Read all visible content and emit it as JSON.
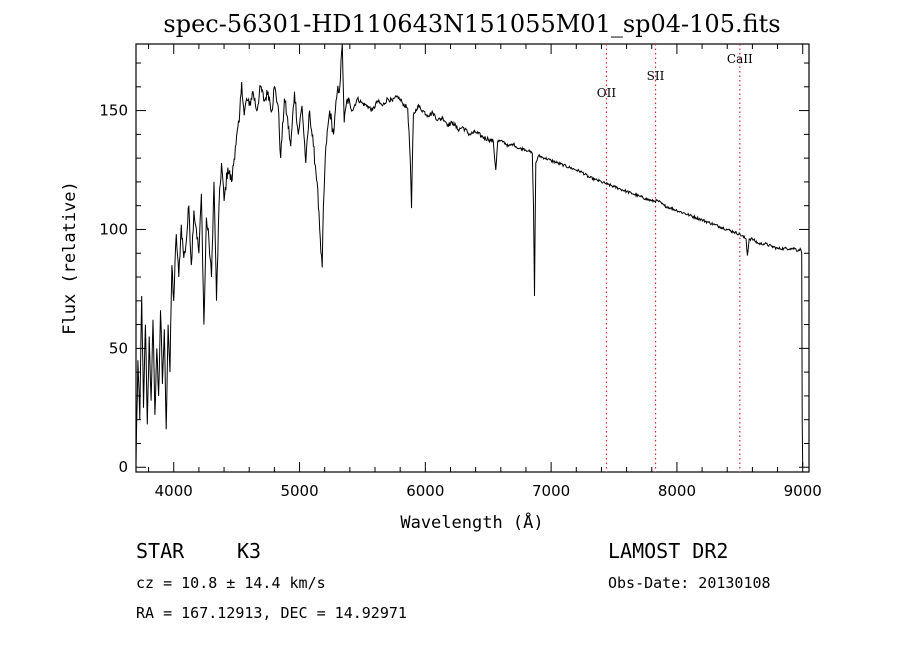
{
  "chart_data": {
    "type": "line",
    "title": "spec-56301-HD110643N151055M01_sp04-105.fits",
    "xlabel": "Wavelength (Å)",
    "ylabel": "Flux (relative)",
    "xlim": [
      3700,
      9050
    ],
    "ylim": [
      -2,
      178
    ],
    "x_ticks": [
      4000,
      5000,
      6000,
      7000,
      8000,
      9000
    ],
    "y_ticks": [
      0,
      50,
      100,
      150
    ],
    "series": [
      {
        "points": [
          [
            3700,
            2
          ],
          [
            3715,
            45
          ],
          [
            3730,
            20
          ],
          [
            3745,
            72
          ],
          [
            3760,
            25
          ],
          [
            3775,
            60
          ],
          [
            3790,
            18
          ],
          [
            3805,
            55
          ],
          [
            3820,
            28
          ],
          [
            3835,
            62
          ],
          [
            3850,
            22
          ],
          [
            3865,
            50
          ],
          [
            3880,
            30
          ],
          [
            3895,
            66
          ],
          [
            3910,
            35
          ],
          [
            3925,
            58
          ],
          [
            3940,
            16
          ],
          [
            3955,
            60
          ],
          [
            3970,
            40
          ],
          [
            3985,
            85
          ],
          [
            4000,
            70
          ],
          [
            4020,
            98
          ],
          [
            4040,
            80
          ],
          [
            4060,
            102
          ],
          [
            4080,
            88
          ],
          [
            4100,
            95
          ],
          [
            4120,
            110
          ],
          [
            4140,
            85
          ],
          [
            4160,
            108
          ],
          [
            4180,
            100
          ],
          [
            4200,
            90
          ],
          [
            4220,
            115
          ],
          [
            4240,
            60
          ],
          [
            4260,
            105
          ],
          [
            4280,
            95
          ],
          [
            4300,
            80
          ],
          [
            4320,
            120
          ],
          [
            4340,
            70
          ],
          [
            4360,
            110
          ],
          [
            4380,
            128
          ],
          [
            4400,
            112
          ],
          [
            4430,
            126
          ],
          [
            4460,
            120
          ],
          [
            4490,
            135
          ],
          [
            4520,
            145
          ],
          [
            4540,
            162
          ],
          [
            4560,
            148
          ],
          [
            4580,
            155
          ],
          [
            4600,
            152
          ],
          [
            4630,
            158
          ],
          [
            4660,
            150
          ],
          [
            4690,
            160
          ],
          [
            4720,
            154
          ],
          [
            4750,
            158
          ],
          [
            4780,
            150
          ],
          [
            4800,
            160
          ],
          [
            4830,
            152
          ],
          [
            4850,
            130
          ],
          [
            4880,
            155
          ],
          [
            4900,
            148
          ],
          [
            4930,
            135
          ],
          [
            4960,
            158
          ],
          [
            4990,
            140
          ],
          [
            5020,
            152
          ],
          [
            5050,
            128
          ],
          [
            5080,
            150
          ],
          [
            5110,
            135
          ],
          [
            5140,
            120
          ],
          [
            5160,
            100
          ],
          [
            5170,
            90
          ],
          [
            5180,
            84
          ],
          [
            5190,
            110
          ],
          [
            5210,
            135
          ],
          [
            5240,
            150
          ],
          [
            5270,
            140
          ],
          [
            5300,
            158
          ],
          [
            5320,
            160
          ],
          [
            5340,
            178
          ],
          [
            5355,
            145
          ],
          [
            5380,
            155
          ],
          [
            5420,
            150
          ],
          [
            5460,
            155
          ],
          [
            5500,
            153
          ],
          [
            5540,
            152
          ],
          [
            5580,
            150
          ],
          [
            5620,
            154
          ],
          [
            5660,
            152
          ],
          [
            5700,
            155
          ],
          [
            5740,
            154
          ],
          [
            5780,
            156
          ],
          [
            5820,
            153
          ],
          [
            5860,
            151
          ],
          [
            5880,
            130
          ],
          [
            5890,
            109
          ],
          [
            5905,
            148
          ],
          [
            5940,
            152
          ],
          [
            5980,
            150
          ],
          [
            6020,
            148
          ],
          [
            6060,
            149
          ],
          [
            6100,
            146
          ],
          [
            6140,
            147
          ],
          [
            6180,
            144
          ],
          [
            6220,
            145
          ],
          [
            6260,
            142
          ],
          [
            6300,
            143
          ],
          [
            6350,
            140
          ],
          [
            6400,
            141
          ],
          [
            6450,
            139
          ],
          [
            6500,
            138
          ],
          [
            6540,
            137
          ],
          [
            6560,
            125
          ],
          [
            6575,
            137
          ],
          [
            6620,
            137
          ],
          [
            6660,
            135
          ],
          [
            6700,
            136
          ],
          [
            6740,
            134
          ],
          [
            6780,
            134
          ],
          [
            6820,
            133
          ],
          [
            6850,
            132
          ],
          [
            6860,
            110
          ],
          [
            6868,
            72
          ],
          [
            6878,
            128
          ],
          [
            6900,
            131
          ],
          [
            6950,
            130
          ],
          [
            7000,
            129
          ],
          [
            7050,
            128
          ],
          [
            7100,
            127
          ],
          [
            7150,
            126
          ],
          [
            7200,
            125
          ],
          [
            7250,
            124
          ],
          [
            7300,
            122
          ],
          [
            7350,
            121
          ],
          [
            7400,
            120
          ],
          [
            7450,
            119
          ],
          [
            7500,
            118
          ],
          [
            7550,
            117
          ],
          [
            7600,
            116
          ],
          [
            7650,
            115
          ],
          [
            7700,
            114
          ],
          [
            7750,
            113
          ],
          [
            7800,
            112
          ],
          [
            7850,
            112
          ],
          [
            7900,
            110
          ],
          [
            7950,
            109
          ],
          [
            8000,
            108
          ],
          [
            8050,
            107
          ],
          [
            8100,
            106
          ],
          [
            8150,
            105
          ],
          [
            8200,
            104
          ],
          [
            8250,
            103
          ],
          [
            8300,
            102
          ],
          [
            8350,
            101
          ],
          [
            8400,
            100
          ],
          [
            8450,
            99
          ],
          [
            8500,
            98
          ],
          [
            8550,
            96
          ],
          [
            8560,
            89
          ],
          [
            8575,
            96
          ],
          [
            8600,
            96
          ],
          [
            8650,
            94
          ],
          [
            8700,
            94
          ],
          [
            8750,
            93
          ],
          [
            8800,
            92
          ],
          [
            8850,
            92
          ],
          [
            8900,
            92
          ],
          [
            8940,
            92
          ],
          [
            8960,
            91
          ],
          [
            8980,
            92
          ],
          [
            8992,
            90
          ],
          [
            8996,
            20
          ],
          [
            9000,
            0
          ]
        ]
      }
    ],
    "lines": [
      {
        "label": "OII",
        "x": 7440,
        "color": "#e8202a"
      },
      {
        "label": "SII",
        "x": 7830,
        "color": "#e8202a"
      },
      {
        "label": "CaII",
        "x": 8500,
        "color": "#e8202a"
      }
    ]
  },
  "info": {
    "object": "STAR",
    "subclass": "K3",
    "cz": "cz = 10.8 ± 14.4 km/s",
    "coords": "RA = 167.12913, DEC =  14.92971",
    "survey": "LAMOST DR2",
    "obs_date": "Obs-Date: 20130108"
  }
}
